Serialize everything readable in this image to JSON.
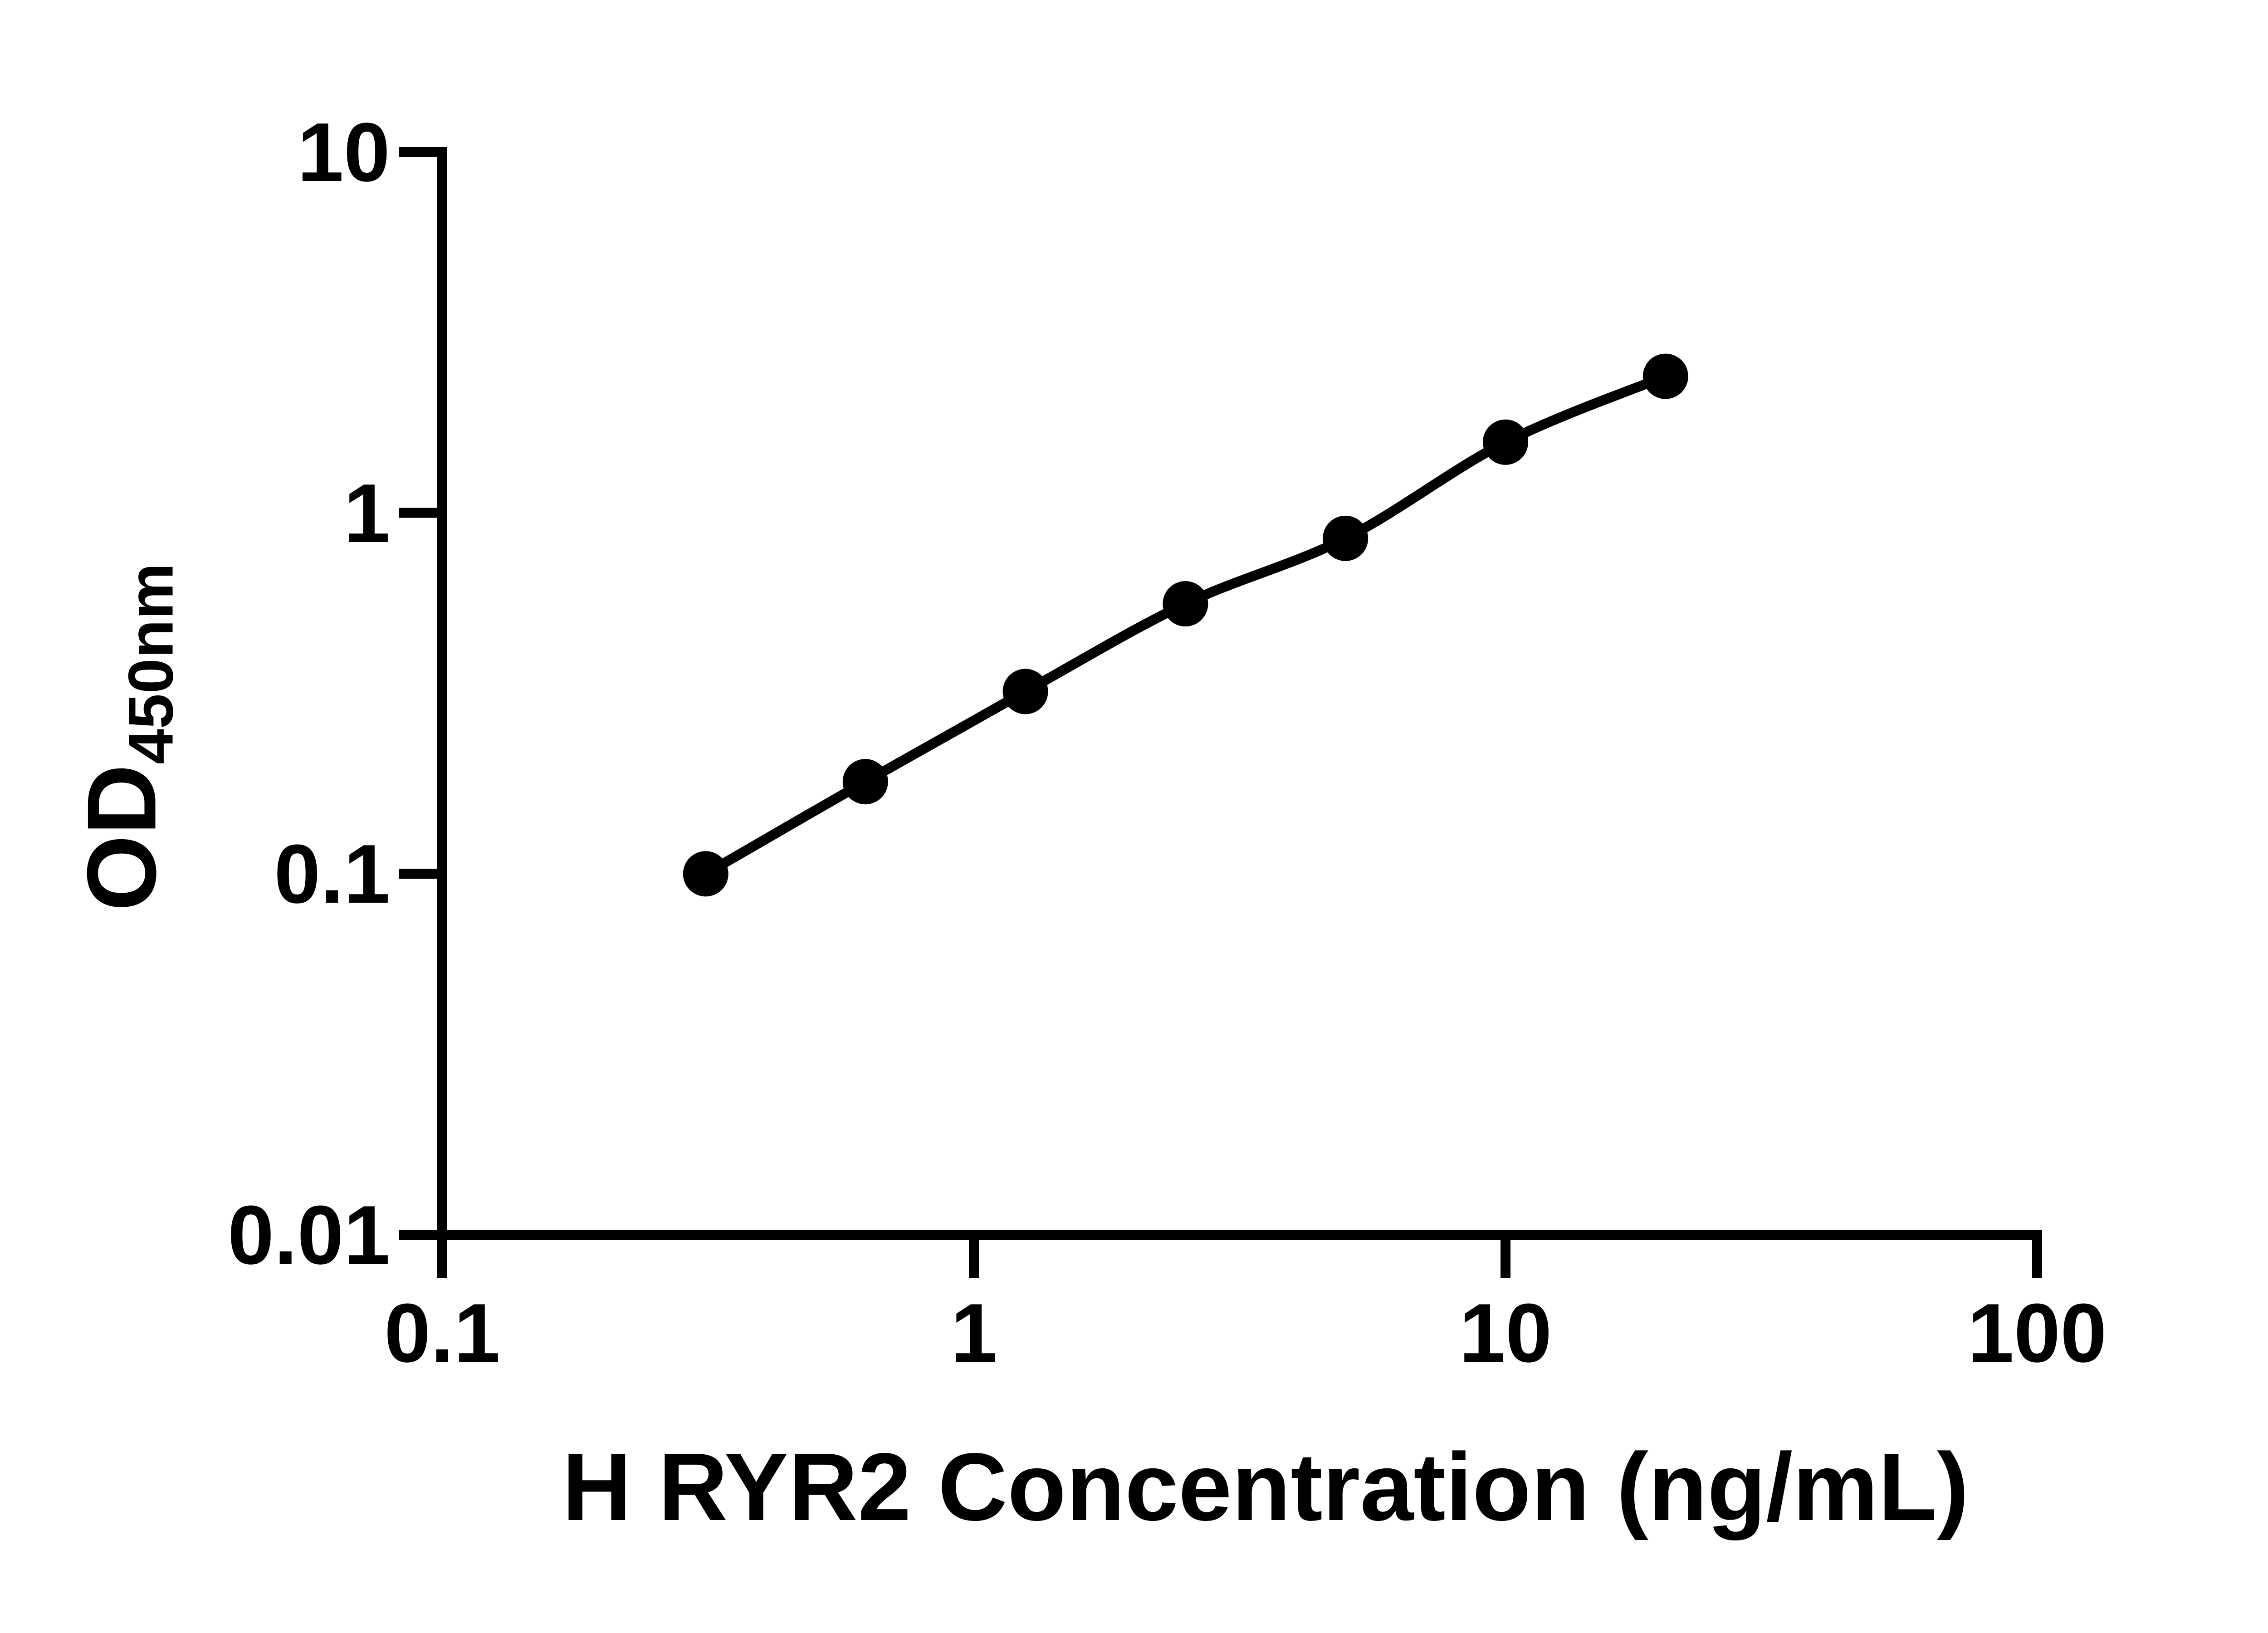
{
  "figure": {
    "background": "#ffffff",
    "ink_color": "#000000"
  },
  "chart_data": {
    "type": "scatter",
    "subtype": "standard-curve-with-connecting-line",
    "title": "",
    "xlabel": "H RYR2 Concentration (ng/mL)",
    "ylabel_main": "OD",
    "ylabel_subscript": "450nm",
    "x_scale": "log10",
    "y_scale": "log10",
    "xlim": [
      0.1,
      100
    ],
    "ylim": [
      0.01,
      10
    ],
    "x_tick_values": [
      0.1,
      1,
      10,
      100
    ],
    "x_tick_labels": [
      "0.1",
      "1",
      "10",
      "100"
    ],
    "y_tick_values": [
      10,
      1,
      0.1,
      0.01
    ],
    "y_tick_labels": [
      "10",
      "1",
      "0.1",
      "0.01"
    ],
    "grid": false,
    "legend_position": "none",
    "marker": "filled-circle",
    "marker_color": "#000000",
    "line_color": "#000000",
    "series": [
      {
        "points": [
          {
            "x": 0.313,
            "y": 0.1
          },
          {
            "x": 0.625,
            "y": 0.18
          },
          {
            "x": 1.25,
            "y": 0.32
          },
          {
            "x": 2.5,
            "y": 0.56
          },
          {
            "x": 5,
            "y": 0.85
          },
          {
            "x": 10,
            "y": 1.57
          },
          {
            "x": 20,
            "y": 2.39
          }
        ]
      }
    ]
  }
}
